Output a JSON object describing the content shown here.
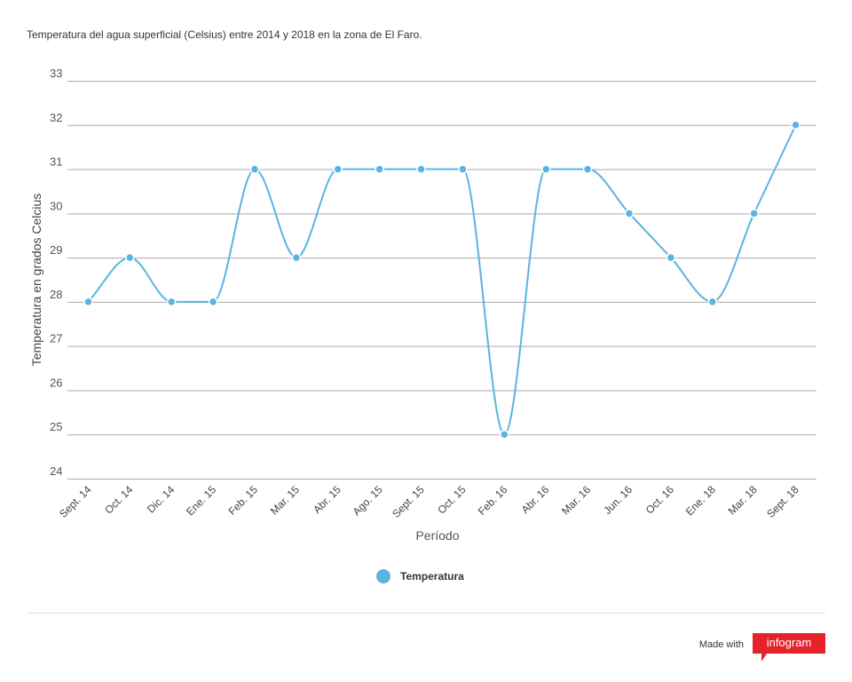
{
  "chart_data": {
    "type": "line",
    "title": "Temperatura del agua superficial (Celsius) entre 2014 y 2018 en la zona de El Faro.",
    "x_label": "Período",
    "y_label": "Temperatura en grados Celcius",
    "categories": [
      "Sept. 14",
      "Oct. 14",
      "Dic. 14",
      "Ene. 15",
      "Feb. 15",
      "Mar. 15",
      "Abr. 15",
      "Ago. 15",
      "Sept. 15",
      "Oct. 15",
      "Feb. 16",
      "Abr. 16",
      "Mar. 16",
      "Jun. 16",
      "Oct. 16",
      "Ene. 18",
      "Mar. 18",
      "Sept. 18"
    ],
    "series": [
      {
        "name": "Temperatura",
        "color": "#5ab4e0",
        "values": [
          28,
          29,
          28,
          28,
          31,
          29,
          31,
          31,
          31,
          31,
          25,
          31,
          31,
          30,
          29,
          28,
          30,
          32
        ]
      }
    ],
    "ylim": [
      24,
      33
    ],
    "yticks": [
      24,
      25,
      26,
      27,
      28,
      29,
      30,
      31,
      32,
      33
    ],
    "grid": true,
    "smooth": true
  },
  "footer": {
    "made_with": "Made with",
    "brand": "infogram"
  }
}
